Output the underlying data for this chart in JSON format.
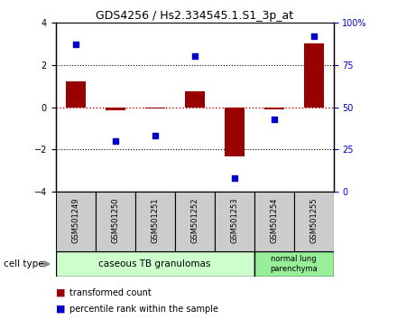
{
  "title": "GDS4256 / Hs2.334545.1.S1_3p_at",
  "samples": [
    "GSM501249",
    "GSM501250",
    "GSM501251",
    "GSM501252",
    "GSM501253",
    "GSM501254",
    "GSM501255"
  ],
  "transformed_count": [
    1.2,
    -0.15,
    -0.07,
    0.75,
    -2.3,
    -0.1,
    3.0
  ],
  "percentile_rank": [
    87,
    30,
    33,
    80,
    8,
    43,
    92
  ],
  "ylim_left": [
    -4,
    4
  ],
  "ylim_right": [
    0,
    100
  ],
  "yticks_left": [
    -4,
    -2,
    0,
    2,
    4
  ],
  "yticks_right": [
    0,
    25,
    50,
    75,
    100
  ],
  "ytick_labels_right": [
    "0",
    "25",
    "50",
    "75",
    "100%"
  ],
  "bar_color": "#990000",
  "scatter_color": "#0000cc",
  "zero_line_color": "#cc0000",
  "dotted_line_color": "#000000",
  "group1_label": "caseous TB granulomas",
  "group1_n": 5,
  "group2_label": "normal lung\nparenchyma",
  "group2_n": 2,
  "group1_color": "#ccffcc",
  "group2_color": "#99ee99",
  "cell_type_label": "cell type",
  "legend_bar_label": "transformed count",
  "legend_scatter_label": "percentile rank within the sample",
  "sample_box_color": "#cccccc",
  "fig_width": 4.4,
  "fig_height": 3.54,
  "dpi": 100
}
